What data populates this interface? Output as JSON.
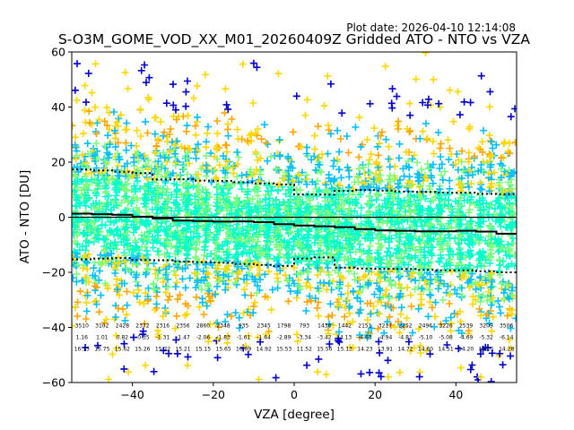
{
  "chart_data": {
    "type": "scatter",
    "title": "S-O3M_GOME_VOD_XX_M01_20260409Z Gridded ATO - NTO vs VZA",
    "plot_date": "Plot date: 2026-04-10 12:14:08",
    "xlabel": "VZA [degree]",
    "ylabel": "ATO - NTO [DU]",
    "xlim": [
      -55,
      55
    ],
    "ylim": [
      -60,
      60
    ],
    "xticks": [
      -40,
      -20,
      0,
      20,
      40
    ],
    "yticks": [
      -60,
      -40,
      -20,
      0,
      20,
      40,
      60
    ],
    "grid": false,
    "zero_line": 0,
    "marker": "+",
    "density_colors": [
      "#0000cc",
      "#00bfff",
      "#00ffcc",
      "#7cfc7c",
      "#ffd700",
      "#ffa500"
    ],
    "bins": [
      {
        "x": -52.5,
        "count": "3510",
        "mean": "1.16",
        "std": "16.15"
      },
      {
        "x": -47.5,
        "count": "3102",
        "mean": "1.01",
        "std": "15.75"
      },
      {
        "x": -42.5,
        "count": "2428",
        "mean": "0.82",
        "std": "15.62"
      },
      {
        "x": -37.5,
        "count": "2372",
        "mean": "-0.35",
        "std": "15.26"
      },
      {
        "x": -32.5,
        "count": "2316",
        "mean": "-1.31",
        "std": "15.22"
      },
      {
        "x": -27.5,
        "count": "2356",
        "mean": "-1.47",
        "std": "15.21"
      },
      {
        "x": -22.5,
        "count": "2860",
        "mean": "-2.06",
        "std": "15.15"
      },
      {
        "x": -17.5,
        "count": "2348",
        "mean": "-1.83",
        "std": "15.65"
      },
      {
        "x": -12.5,
        "count": "935",
        "mean": "-1.61",
        "std": "10.09"
      },
      {
        "x": -7.5,
        "count": "2345",
        "mean": "-1.64",
        "std": "14.92"
      },
      {
        "x": -2.5,
        "count": "1798",
        "mean": "-2.89",
        "std": "15.53"
      },
      {
        "x": 2.5,
        "count": "793",
        "mean": "-3.34",
        "std": "11.52"
      },
      {
        "x": 7.5,
        "count": "1436",
        "mean": "-3.42",
        "std": "15.56"
      },
      {
        "x": 12.5,
        "count": "1442",
        "mean": "-4.13",
        "std": "15.13"
      },
      {
        "x": 17.5,
        "count": "2151",
        "mean": "-4.63",
        "std": "14.23"
      },
      {
        "x": 22.5,
        "count": "3217",
        "mean": "-4.94",
        "std": "13.91"
      },
      {
        "x": 27.5,
        "count": "2252",
        "mean": "-4.81",
        "std": "14.72"
      },
      {
        "x": 32.5,
        "count": "2496",
        "mean": "-5.10",
        "std": "14.60"
      },
      {
        "x": 37.5,
        "count": "3226",
        "mean": "-5.08",
        "std": "14.51"
      },
      {
        "x": 42.5,
        "count": "2539",
        "mean": "-4.69",
        "std": "14.20"
      },
      {
        "x": 47.5,
        "count": "3209",
        "mean": "-5.32",
        "std": "14.01"
      },
      {
        "x": 52.5,
        "count": "3506",
        "mean": "-6.14",
        "std": "14.28"
      }
    ],
    "mean_line": [
      [
        -55,
        1.3
      ],
      [
        -50,
        1.1
      ],
      [
        -45,
        0.9
      ],
      [
        -40,
        0.2
      ],
      [
        -35,
        -0.4
      ],
      [
        -30,
        -1.2
      ],
      [
        -25,
        -1.4
      ],
      [
        -20,
        -1.6
      ],
      [
        -15,
        -1.5
      ],
      [
        -10,
        -1.8
      ],
      [
        -5,
        -2.5
      ],
      [
        0,
        -3.0
      ],
      [
        5,
        -3.3
      ],
      [
        10,
        -3.6
      ],
      [
        15,
        -4.3
      ],
      [
        20,
        -4.8
      ],
      [
        25,
        -4.9
      ],
      [
        30,
        -5.1
      ],
      [
        35,
        -5.1
      ],
      [
        40,
        -4.9
      ],
      [
        45,
        -5.2
      ],
      [
        50,
        -6.0
      ],
      [
        55,
        -6.1
      ]
    ],
    "upper_std_line": [
      [
        -55,
        17.3
      ],
      [
        -50,
        17.0
      ],
      [
        -45,
        16.5
      ],
      [
        -40,
        16.0
      ],
      [
        -35,
        13.7
      ],
      [
        -30,
        13.8
      ],
      [
        -25,
        13.3
      ],
      [
        -20,
        13.2
      ],
      [
        -15,
        12.7
      ],
      [
        -10,
        12.3
      ],
      [
        -5,
        11.9
      ],
      [
        0,
        8.3
      ],
      [
        5,
        8.2
      ],
      [
        10,
        9.6
      ],
      [
        15,
        9.9
      ],
      [
        20,
        9.7
      ],
      [
        25,
        9.3
      ],
      [
        30,
        9.2
      ],
      [
        35,
        8.9
      ],
      [
        40,
        8.9
      ],
      [
        45,
        8.5
      ],
      [
        50,
        8.4
      ],
      [
        55,
        8.3
      ]
    ],
    "lower_std_line": [
      [
        -55,
        -15.3
      ],
      [
        -50,
        -15.0
      ],
      [
        -45,
        -14.8
      ],
      [
        -40,
        -15.5
      ],
      [
        -35,
        -15.6
      ],
      [
        -30,
        -16.1
      ],
      [
        -25,
        -16.3
      ],
      [
        -20,
        -16.5
      ],
      [
        -15,
        -17.0
      ],
      [
        -10,
        -17.3
      ],
      [
        -5,
        -17.7
      ],
      [
        0,
        -15.0
      ],
      [
        5,
        -14.6
      ],
      [
        10,
        -18.3
      ],
      [
        15,
        -18.6
      ],
      [
        20,
        -18.7
      ],
      [
        25,
        -18.8
      ],
      [
        30,
        -19.1
      ],
      [
        35,
        -19.3
      ],
      [
        40,
        -19.3
      ],
      [
        45,
        -19.6
      ],
      [
        50,
        -20.0
      ],
      [
        55,
        -20.3
      ]
    ]
  }
}
